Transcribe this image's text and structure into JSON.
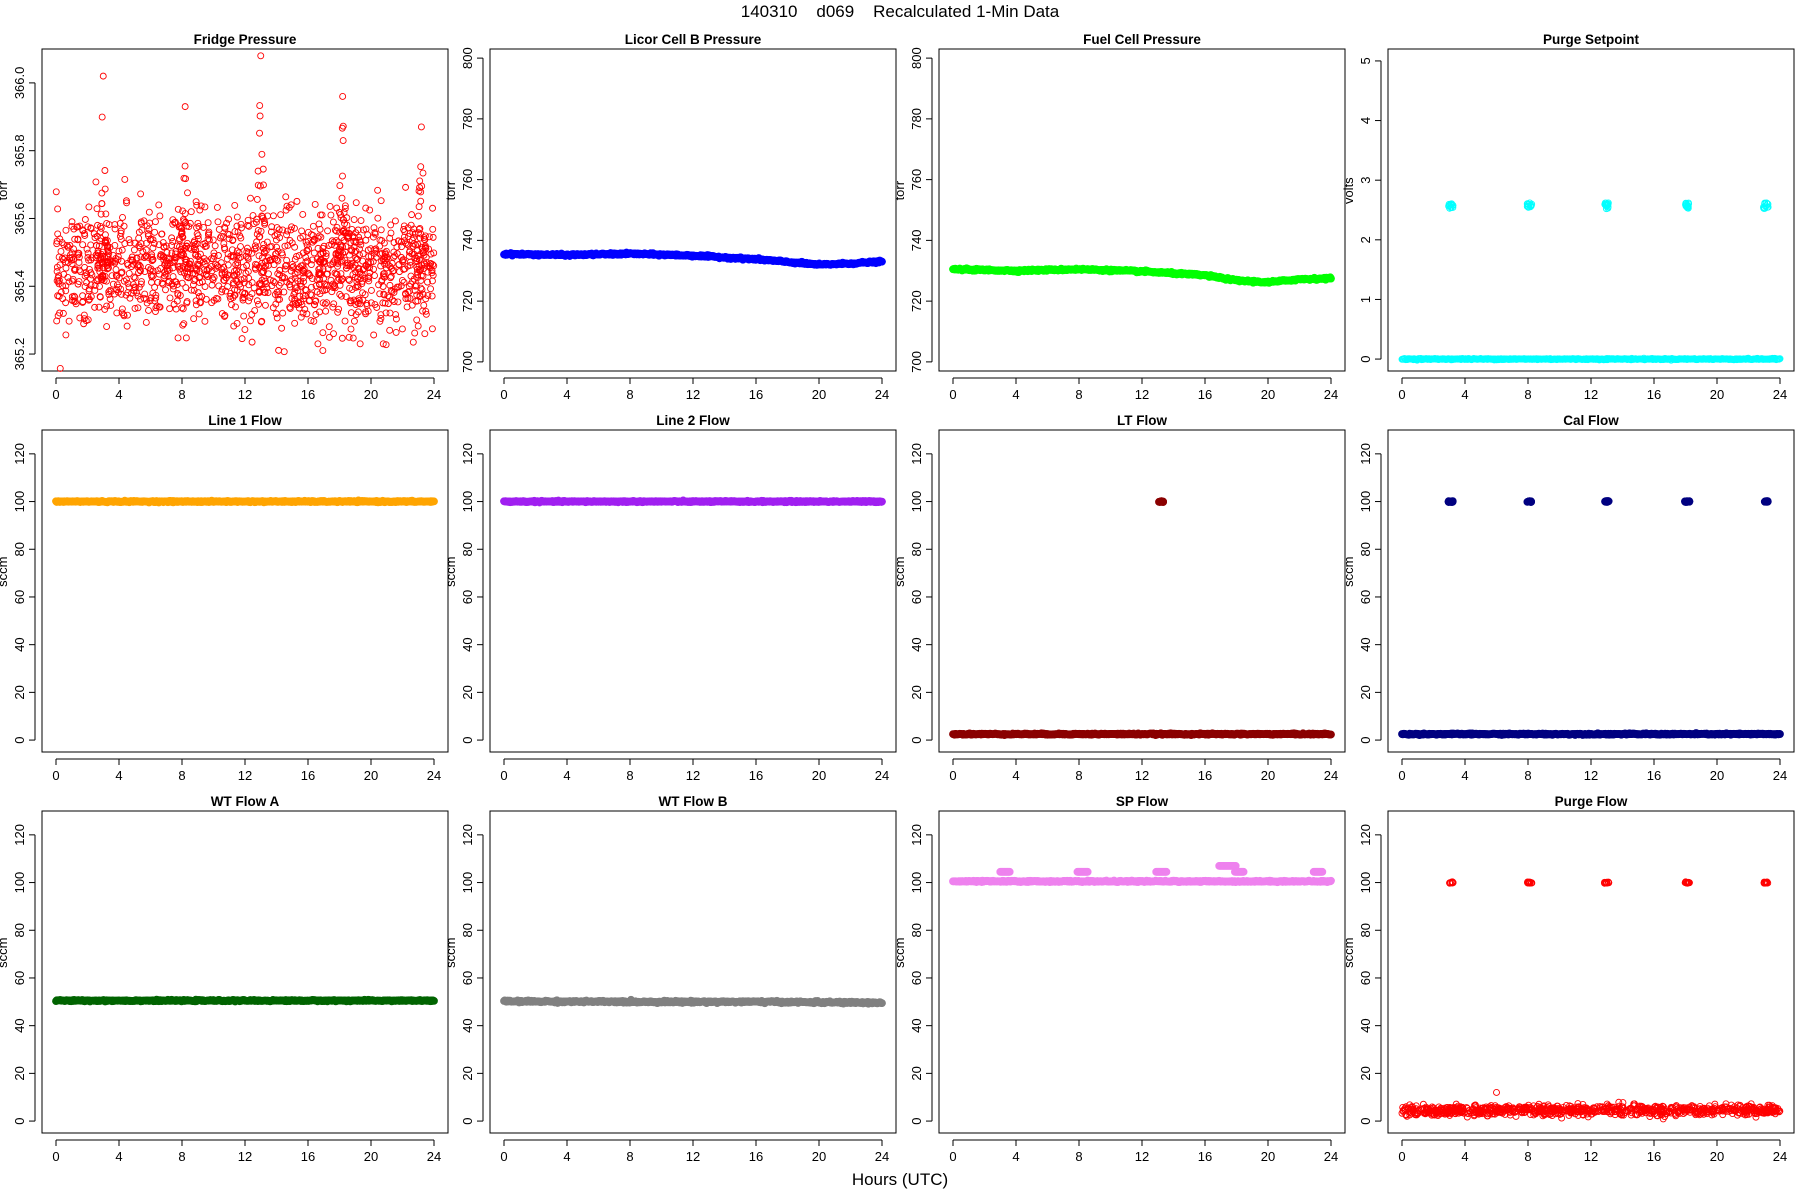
{
  "title": "140310    d069    Recalculated 1-Min Data",
  "xlabel": "Hours (UTC)",
  "chart_data": [
    {
      "type": "scatter",
      "title": "Fridge Pressure",
      "ylabel": "torr",
      "xlim": [
        0,
        24
      ],
      "ylim": [
        365.15,
        366.1
      ],
      "xticks": [
        0,
        4,
        8,
        12,
        16,
        20,
        24
      ],
      "yticks": [
        365.2,
        365.4,
        365.6,
        365.8,
        366.0
      ],
      "ytick_labels": [
        "365.2",
        "365.4",
        "365.6",
        "365.8",
        "366.0"
      ],
      "color": "#ff0000",
      "marker": "open-circle",
      "series": [
        {
          "kind": "noisy",
          "base": 365.45,
          "amp": 0.14,
          "n": 1400
        }
      ],
      "spikes": [
        {
          "x": 3.0,
          "peak": 366.02
        },
        {
          "x": 8.2,
          "peak": 365.93
        },
        {
          "x": 13.0,
          "peak": 366.08
        },
        {
          "x": 18.2,
          "peak": 365.96
        },
        {
          "x": 23.2,
          "peak": 365.87
        }
      ]
    },
    {
      "type": "scatter",
      "title": "Licor Cell B Pressure",
      "ylabel": "torr",
      "xlim": [
        0,
        24
      ],
      "ylim": [
        697,
        803
      ],
      "xticks": [
        0,
        4,
        8,
        12,
        16,
        20,
        24
      ],
      "yticks": [
        700,
        720,
        740,
        760,
        780,
        800
      ],
      "ytick_labels": [
        "700",
        "720",
        "740",
        "760",
        "780",
        "800"
      ],
      "color": "#0000ff",
      "marker": "filled-circle",
      "series": [
        {
          "kind": "line",
          "x": [
            0,
            4,
            8,
            12,
            16,
            20,
            22,
            24
          ],
          "y": [
            735.5,
            735.2,
            735.6,
            735.0,
            733.8,
            732.0,
            732.4,
            733.0
          ]
        }
      ]
    },
    {
      "type": "scatter",
      "title": "Fuel Cell Pressure",
      "ylabel": "torr",
      "xlim": [
        0,
        24
      ],
      "ylim": [
        697,
        803
      ],
      "xticks": [
        0,
        4,
        8,
        12,
        16,
        20,
        24
      ],
      "yticks": [
        700,
        720,
        740,
        760,
        780,
        800
      ],
      "ytick_labels": [
        "700",
        "720",
        "740",
        "760",
        "780",
        "800"
      ],
      "color": "#00ff00",
      "marker": "filled-circle",
      "series": [
        {
          "kind": "line",
          "x": [
            0,
            4,
            8,
            12,
            16,
            18,
            20,
            22,
            24
          ],
          "y": [
            730.5,
            730.0,
            730.5,
            729.8,
            728.5,
            726.8,
            726.2,
            727.2,
            727.5
          ]
        }
      ]
    },
    {
      "type": "scatter",
      "title": "Purge Setpoint",
      "ylabel": "volts",
      "xlim": [
        0,
        24
      ],
      "ylim": [
        -0.2,
        5.2
      ],
      "xticks": [
        0,
        4,
        8,
        12,
        16,
        20,
        24
      ],
      "yticks": [
        0,
        1,
        2,
        3,
        4,
        5
      ],
      "ytick_labels": [
        "0",
        "1",
        "2",
        "3",
        "4",
        "5"
      ],
      "color": "#00ffff",
      "marker": "open-circle",
      "series": [
        {
          "kind": "const",
          "y": 0,
          "n": 500
        },
        {
          "kind": "cluster",
          "centers": [
            3.1,
            8.1,
            13.0,
            18.1,
            23.1
          ],
          "y": 2.57,
          "spread": 0.05
        }
      ]
    },
    {
      "type": "scatter",
      "title": "Line 1 Flow",
      "ylabel": "sccm",
      "xlim": [
        0,
        24
      ],
      "ylim": [
        -5,
        130
      ],
      "xticks": [
        0,
        4,
        8,
        12,
        16,
        20,
        24
      ],
      "yticks": [
        0,
        20,
        40,
        60,
        80,
        100,
        120
      ],
      "ytick_labels": [
        "0",
        "20",
        "40",
        "60",
        "80",
        "100",
        "120"
      ],
      "color": "#ffa500",
      "marker": "filled-circle",
      "series": [
        {
          "kind": "const",
          "y": 100,
          "n": 500
        }
      ]
    },
    {
      "type": "scatter",
      "title": "Line 2 Flow",
      "ylabel": "sccm",
      "xlim": [
        0,
        24
      ],
      "ylim": [
        -5,
        130
      ],
      "xticks": [
        0,
        4,
        8,
        12,
        16,
        20,
        24
      ],
      "yticks": [
        0,
        20,
        40,
        60,
        80,
        100,
        120
      ],
      "ytick_labels": [
        "0",
        "20",
        "40",
        "60",
        "80",
        "100",
        "120"
      ],
      "color": "#a020f0",
      "marker": "filled-circle",
      "series": [
        {
          "kind": "const",
          "y": 100,
          "n": 500
        }
      ]
    },
    {
      "type": "scatter",
      "title": "LT Flow",
      "ylabel": "sccm",
      "xlim": [
        0,
        24
      ],
      "ylim": [
        -5,
        130
      ],
      "xticks": [
        0,
        4,
        8,
        12,
        16,
        20,
        24
      ],
      "yticks": [
        0,
        20,
        40,
        60,
        80,
        100,
        120
      ],
      "ytick_labels": [
        "0",
        "20",
        "40",
        "60",
        "80",
        "100",
        "120"
      ],
      "color": "#8b0000",
      "marker": "filled-circle",
      "series": [
        {
          "kind": "const",
          "y": 2.5,
          "n": 500
        },
        {
          "kind": "cluster",
          "centers": [
            13.2
          ],
          "y": 100,
          "spread": 0.2
        }
      ]
    },
    {
      "type": "scatter",
      "title": "Cal Flow",
      "ylabel": "sccm",
      "xlim": [
        0,
        24
      ],
      "ylim": [
        -5,
        130
      ],
      "xticks": [
        0,
        4,
        8,
        12,
        16,
        20,
        24
      ],
      "yticks": [
        0,
        20,
        40,
        60,
        80,
        100,
        120
      ],
      "ytick_labels": [
        "0",
        "20",
        "40",
        "60",
        "80",
        "100",
        "120"
      ],
      "color": "#000080",
      "marker": "filled-circle",
      "series": [
        {
          "kind": "const",
          "y": 2.5,
          "n": 500
        },
        {
          "kind": "cluster",
          "centers": [
            3.1,
            8.1,
            13.0,
            18.1,
            23.1
          ],
          "y": 100,
          "spread": 0.2
        }
      ]
    },
    {
      "type": "scatter",
      "title": "WT Flow A",
      "ylabel": "sccm",
      "xlim": [
        0,
        24
      ],
      "ylim": [
        -5,
        130
      ],
      "xticks": [
        0,
        4,
        8,
        12,
        16,
        20,
        24
      ],
      "yticks": [
        0,
        20,
        40,
        60,
        80,
        100,
        120
      ],
      "ytick_labels": [
        "0",
        "20",
        "40",
        "60",
        "80",
        "100",
        "120"
      ],
      "color": "#006400",
      "marker": "filled-circle",
      "series": [
        {
          "kind": "const",
          "y": 50.5,
          "n": 500
        }
      ]
    },
    {
      "type": "scatter",
      "title": "WT Flow B",
      "ylabel": "sccm",
      "xlim": [
        0,
        24
      ],
      "ylim": [
        -5,
        130
      ],
      "xticks": [
        0,
        4,
        8,
        12,
        16,
        20,
        24
      ],
      "yticks": [
        0,
        20,
        40,
        60,
        80,
        100,
        120
      ],
      "ytick_labels": [
        "0",
        "20",
        "40",
        "60",
        "80",
        "100",
        "120"
      ],
      "color": "#808080",
      "marker": "filled-circle",
      "series": [
        {
          "kind": "line",
          "x": [
            0,
            8,
            16,
            24
          ],
          "y": [
            50.2,
            50.0,
            50.0,
            49.6
          ]
        }
      ]
    },
    {
      "type": "scatter",
      "title": "SP Flow",
      "ylabel": "sccm",
      "xlim": [
        0,
        24
      ],
      "ylim": [
        -5,
        130
      ],
      "xticks": [
        0,
        4,
        8,
        12,
        16,
        20,
        24
      ],
      "yticks": [
        0,
        20,
        40,
        60,
        80,
        100,
        120
      ],
      "ytick_labels": [
        "0",
        "20",
        "40",
        "60",
        "80",
        "100",
        "120"
      ],
      "color": "#ee82ee",
      "marker": "filled-circle",
      "series": [
        {
          "kind": "const",
          "y": 100.5,
          "n": 500
        },
        {
          "kind": "segments",
          "segs": [
            [
              3.0,
              3.6,
              104.5
            ],
            [
              7.9,
              8.6,
              104.5
            ],
            [
              12.9,
              13.6,
              104.5
            ],
            [
              16.9,
              18.0,
              107
            ],
            [
              17.9,
              18.5,
              104.5
            ],
            [
              22.9,
              23.5,
              104.5
            ]
          ]
        }
      ]
    },
    {
      "type": "scatter",
      "title": "Purge Flow",
      "ylabel": "sccm",
      "xlim": [
        0,
        24
      ],
      "ylim": [
        -5,
        130
      ],
      "xticks": [
        0,
        4,
        8,
        12,
        16,
        20,
        24
      ],
      "yticks": [
        0,
        20,
        40,
        60,
        80,
        100,
        120
      ],
      "ytick_labels": [
        "0",
        "20",
        "40",
        "60",
        "80",
        "100",
        "120"
      ],
      "color": "#ff0000",
      "marker": "open-circle",
      "series": [
        {
          "kind": "noisy",
          "base": 4.5,
          "amp": 1.8,
          "n": 900
        },
        {
          "kind": "cluster",
          "centers": [
            3.1,
            8.1,
            13.0,
            18.1,
            23.1
          ],
          "y": 100,
          "spread": 0.3
        }
      ],
      "outliers": [
        {
          "x": 6.0,
          "y": 12
        }
      ]
    }
  ]
}
